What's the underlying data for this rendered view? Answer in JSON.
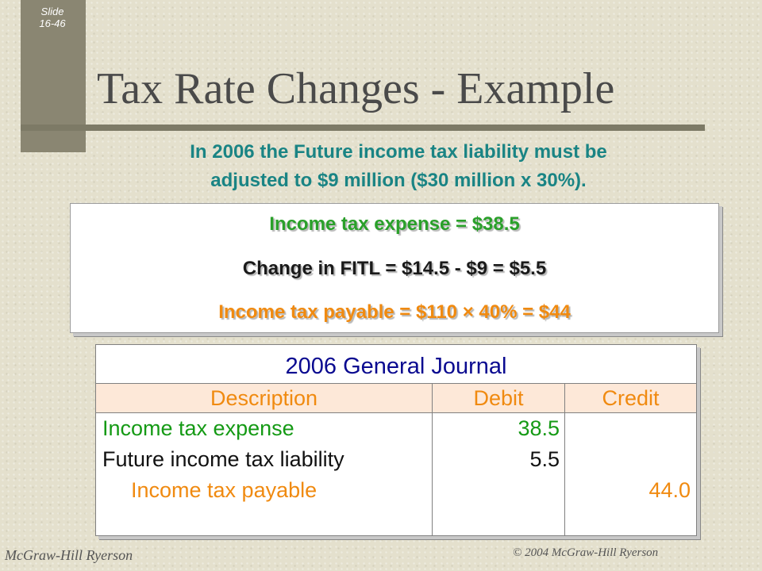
{
  "slide": {
    "number_label": "Slide",
    "number": "16-46",
    "title": "Tax Rate Changes - Example",
    "subtitle_line1": "In 2006 the Future income tax liability must be",
    "subtitle_line2": "adjusted to $9 million ($30 million  x 30%)."
  },
  "formulas": {
    "income_tax_expense": "Income tax expense = $38.5",
    "change_in_fitl": "Change in FITL = $14.5 - $9 = $5.5",
    "income_tax_payable": "Income tax payable = $110 × 40% = $44"
  },
  "journal": {
    "title": "2006 General Journal",
    "headers": {
      "description": "Description",
      "debit": "Debit",
      "credit": "Credit"
    },
    "rows": [
      {
        "description": "Income tax expense",
        "debit": "38.5",
        "credit": ""
      },
      {
        "description": "Future income tax liability",
        "debit": "5.5",
        "credit": ""
      },
      {
        "description": "Income tax payable",
        "debit": "",
        "credit": "44.0"
      }
    ]
  },
  "footer": {
    "publisher": "McGraw-Hill Ryerson",
    "copyright": "© 2004 McGraw-Hill Ryerson"
  },
  "colors": {
    "background": "#e4e0cd",
    "subtitle": "#1a8484",
    "green": "#159a15",
    "orange": "#f08a10",
    "journal_title": "#0a0a90"
  }
}
